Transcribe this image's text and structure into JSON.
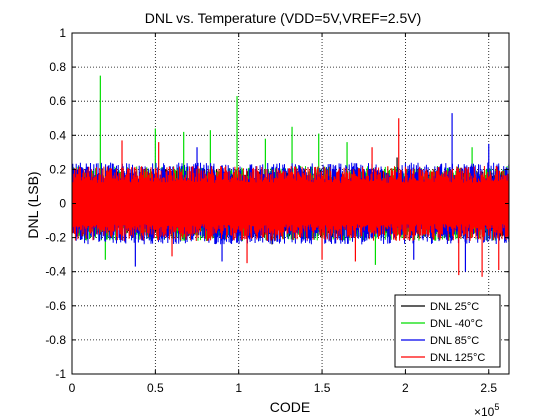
{
  "chart_data": {
    "type": "line",
    "title": "DNL vs. Temperature (VDD=5V,VREF=2.5V)",
    "xlabel": "CODE",
    "ylabel": "DNL (LSB)",
    "xlim": [
      0,
      262144
    ],
    "ylim": [
      -1,
      1
    ],
    "x_exponent_label": "×10",
    "x_exponent_power": "5",
    "x_ticks": [
      0,
      50000,
      100000,
      150000,
      200000,
      250000
    ],
    "x_tick_labels": [
      "0",
      "0.5",
      "1",
      "1.5",
      "2",
      "2.5"
    ],
    "y_ticks": [
      -1,
      -0.8,
      -0.6,
      -0.4,
      -0.2,
      0,
      0.2,
      0.4,
      0.6,
      0.8,
      1
    ],
    "y_tick_labels": [
      "-1",
      "-0.8",
      "-0.6",
      "-0.4",
      "-0.2",
      "0",
      "0.2",
      "0.4",
      "0.6",
      "0.8",
      "1"
    ],
    "grid": true,
    "legend_position": "bottom-right",
    "series": [
      {
        "name": "DNL 25°C",
        "color": "#000000",
        "band": [
          -0.2,
          0.2
        ],
        "spikes": [
          [
            195000,
            0.27
          ],
          [
            120000,
            -0.24
          ]
        ]
      },
      {
        "name": "DNL -40°C",
        "color": "#00dd00",
        "band": [
          -0.22,
          0.22
        ],
        "spikes": [
          [
            17000,
            0.75
          ],
          [
            50000,
            0.44
          ],
          [
            67000,
            0.42
          ],
          [
            83000,
            0.43
          ],
          [
            99000,
            0.63
          ],
          [
            116000,
            0.38
          ],
          [
            132000,
            0.45
          ],
          [
            148000,
            0.41
          ],
          [
            165000,
            0.36
          ],
          [
            182000,
            -0.36
          ],
          [
            20000,
            -0.33
          ],
          [
            240000,
            0.33
          ]
        ]
      },
      {
        "name": "DNL 85°C",
        "color": "#0000ee",
        "band": [
          -0.24,
          0.24
        ],
        "spikes": [
          [
            228000,
            0.53
          ],
          [
            38000,
            -0.37
          ],
          [
            90000,
            -0.34
          ],
          [
            236000,
            -0.4
          ],
          [
            75000,
            0.33
          ],
          [
            205000,
            -0.33
          ],
          [
            250000,
            0.35
          ]
        ]
      },
      {
        "name": "DNL 125°C",
        "color": "#ff0000",
        "band": [
          -0.22,
          0.22
        ],
        "spikes": [
          [
            196000,
            0.5
          ],
          [
            30000,
            0.37
          ],
          [
            52000,
            0.36
          ],
          [
            105000,
            -0.35
          ],
          [
            150000,
            -0.33
          ],
          [
            170000,
            -0.34
          ],
          [
            232000,
            -0.42
          ],
          [
            246000,
            -0.43
          ],
          [
            256000,
            -0.39
          ],
          [
            180000,
            0.33
          ],
          [
            60000,
            -0.31
          ]
        ]
      }
    ]
  }
}
